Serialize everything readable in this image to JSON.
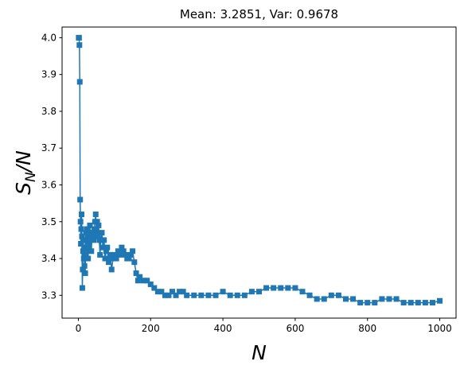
{
  "chart_data": {
    "type": "line",
    "title": "Mean: 3.2851, Var: 0.9678",
    "xlabel": "N",
    "ylabel": "S_N/N",
    "xlim": [
      -45,
      1045
    ],
    "ylim": [
      3.238,
      4.029
    ],
    "xticks": [
      0,
      200,
      400,
      600,
      800,
      1000
    ],
    "yticks": [
      3.3,
      3.4,
      3.5,
      3.6,
      3.7,
      3.8,
      3.9,
      4.0
    ],
    "marker": "square",
    "color": "#1f77b4",
    "grid": false,
    "series": [
      {
        "x": [
          1,
          2,
          3,
          4,
          5,
          6,
          7,
          8,
          9,
          10,
          11,
          12,
          13,
          14,
          15,
          16,
          17,
          18,
          19,
          20,
          21,
          22,
          23,
          24,
          25,
          26,
          27,
          28,
          29,
          30,
          32,
          34,
          36,
          38,
          40,
          42,
          44,
          46,
          48,
          50,
          52,
          54,
          56,
          58,
          60,
          62,
          65,
          68,
          71,
          74,
          77,
          80,
          84,
          88,
          92,
          96,
          100,
          105,
          110,
          115,
          120,
          125,
          130,
          135,
          140,
          145,
          150,
          155,
          160,
          165,
          170,
          180,
          190,
          200,
          210,
          220,
          230,
          240,
          250,
          260,
          270,
          280,
          290,
          300,
          320,
          340,
          360,
          380,
          400,
          420,
          440,
          460,
          480,
          500,
          520,
          540,
          560,
          580,
          600,
          620,
          640,
          660,
          680,
          700,
          720,
          740,
          760,
          780,
          800,
          820,
          840,
          860,
          880,
          900,
          920,
          940,
          960,
          980,
          1000
        ],
        "values": [
          4.0,
          4.0,
          3.98,
          3.88,
          3.56,
          3.5,
          3.44,
          3.48,
          3.52,
          3.46,
          3.32,
          3.37,
          3.42,
          3.45,
          3.4,
          3.43,
          3.38,
          3.41,
          3.36,
          3.43,
          3.47,
          3.45,
          3.42,
          3.48,
          3.44,
          3.46,
          3.4,
          3.43,
          3.47,
          3.44,
          3.49,
          3.45,
          3.42,
          3.47,
          3.46,
          3.45,
          3.48,
          3.5,
          3.52,
          3.47,
          3.5,
          3.46,
          3.49,
          3.45,
          3.41,
          3.45,
          3.47,
          3.43,
          3.45,
          3.4,
          3.42,
          3.43,
          3.39,
          3.41,
          3.37,
          3.4,
          3.41,
          3.4,
          3.42,
          3.41,
          3.43,
          3.42,
          3.41,
          3.4,
          3.4,
          3.41,
          3.42,
          3.39,
          3.36,
          3.34,
          3.35,
          3.34,
          3.34,
          3.33,
          3.32,
          3.31,
          3.31,
          3.3,
          3.3,
          3.31,
          3.3,
          3.31,
          3.31,
          3.3,
          3.3,
          3.3,
          3.3,
          3.3,
          3.31,
          3.3,
          3.3,
          3.3,
          3.31,
          3.31,
          3.32,
          3.32,
          3.32,
          3.32,
          3.32,
          3.31,
          3.3,
          3.29,
          3.29,
          3.3,
          3.3,
          3.29,
          3.29,
          3.28,
          3.28,
          3.28,
          3.29,
          3.29,
          3.29,
          3.28,
          3.28,
          3.28,
          3.28,
          3.28,
          3.285
        ]
      }
    ]
  }
}
